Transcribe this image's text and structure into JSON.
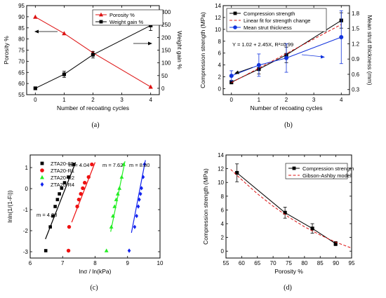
{
  "chart_data": [
    {
      "type": "line",
      "panel_label": "(a)",
      "xlabel": "Number of recoating cycles",
      "ylabel": "Porosity %",
      "ylabel_right": "Weight gain %",
      "xlim": [
        -0.3,
        4.3
      ],
      "ylim": [
        55,
        95
      ],
      "ylim_right": [
        -25,
        325
      ],
      "xticks": [
        "0",
        "1",
        "2",
        "3",
        "4"
      ],
      "yticks": [
        "55",
        "60",
        "65",
        "70",
        "75",
        "80",
        "85",
        "90",
        "95"
      ],
      "yticks_right": [
        "0",
        "50",
        "100",
        "150",
        "200",
        "250",
        "300"
      ],
      "series": [
        {
          "name": "Porosity %",
          "color": "#dd1111",
          "marker": "triangle",
          "axis": "left",
          "x": [
            0,
            1,
            2,
            4
          ],
          "values": [
            89.9,
            82.5,
            73.8,
            58.5
          ]
        },
        {
          "name": "Weight gain %",
          "color": "#000000",
          "marker": "square",
          "axis": "right",
          "x": [
            0,
            1,
            2,
            4
          ],
          "values": [
            0,
            55,
            132,
            247
          ],
          "err": [
            0,
            12,
            13,
            20
          ]
        }
      ]
    },
    {
      "type": "line",
      "panel_label": "(b)",
      "xlabel": "Number of recoating cycles",
      "ylabel": "Compression strength (MPa)",
      "ylabel_right": "Mean strut thickness (mm)",
      "xlim": [
        -0.3,
        4.3
      ],
      "ylim": [
        -1,
        14
      ],
      "ylim_right": [
        0.2,
        1.95
      ],
      "xticks": [
        "0",
        "1",
        "2",
        "3",
        "4"
      ],
      "yticks": [
        "0",
        "2",
        "4",
        "6",
        "8",
        "10",
        "12",
        "14"
      ],
      "yticks_right": [
        "0.3",
        "0.6",
        "0.9",
        "1.2",
        "1.5",
        "1.8"
      ],
      "annotation": "Y = 1.02 + 2.45X, R²=0.99",
      "series": [
        {
          "name": "Compression strength",
          "color": "#000000",
          "marker": "square",
          "axis": "left",
          "x": [
            0,
            1,
            2,
            4
          ],
          "values": [
            1.1,
            3.3,
            5.7,
            11.5
          ],
          "err": [
            0.3,
            0.8,
            1.3,
            1.3
          ]
        },
        {
          "name": "Linear fit for strength change",
          "color": "#dd1111",
          "marker": "none",
          "dashed": true,
          "axis": "left",
          "x": [
            0,
            4
          ],
          "values": [
            1.02,
            10.82
          ]
        },
        {
          "name": "Mean strut thickness",
          "color": "#1133dd",
          "marker": "circle",
          "axis": "right",
          "x": [
            0,
            1,
            2,
            4
          ],
          "values": [
            0.57,
            0.78,
            0.92,
            1.33
          ],
          "err": [
            0.1,
            0.22,
            0.28,
            0.52
          ]
        }
      ]
    },
    {
      "type": "scatter",
      "panel_label": "(c)",
      "xlabel": "lnσ / ln(kPa)",
      "ylabel": "lnln(1/(1-Fi))",
      "xlim": [
        6,
        10
      ],
      "ylim": [
        -3.3,
        1.6
      ],
      "xticks": [
        "6",
        "7",
        "8",
        "9",
        "10"
      ],
      "yticks": [
        "-3",
        "-2",
        "-1",
        "0",
        "1"
      ],
      "series": [
        {
          "name": "ZTA20-80",
          "color": "#000000",
          "marker": "square",
          "m_label": "m = 4.23",
          "x": [
            6.48,
            6.62,
            6.7,
            6.77,
            6.84,
            6.9,
            6.97,
            7.06,
            7.18,
            7.34
          ],
          "values": [
            -2.95,
            -1.82,
            -1.3,
            -0.85,
            -0.52,
            -0.25,
            0.02,
            0.28,
            0.55,
            1.15
          ],
          "fit_x": [
            6.47,
            7.4
          ],
          "fit_y": [
            -2.4,
            1.25
          ]
        },
        {
          "name": "ZTA20-R1",
          "color": "#ee1111",
          "marker": "circle",
          "m_label": "m = 4.04",
          "x": [
            7.18,
            7.2,
            7.45,
            7.5,
            7.56,
            7.62,
            7.68,
            7.8,
            7.9
          ],
          "values": [
            -2.95,
            -1.82,
            -0.85,
            -0.52,
            -0.25,
            0.02,
            0.28,
            0.55,
            1.15
          ],
          "fit_x": [
            7.28,
            8.0
          ],
          "fit_y": [
            -1.6,
            1.25
          ]
        },
        {
          "name": "ZTA20-R2",
          "color": "#22ee22",
          "marker": "triangle",
          "m_label": "m = 7.62",
          "x": [
            8.35,
            8.5,
            8.55,
            8.6,
            8.65,
            8.7,
            8.75,
            8.82,
            8.88
          ],
          "values": [
            -2.95,
            -1.82,
            -1.3,
            -0.85,
            -0.52,
            -0.25,
            0.02,
            0.55,
            1.15
          ],
          "fit_x": [
            8.48,
            8.92
          ],
          "fit_y": [
            -2.05,
            1.3
          ]
        },
        {
          "name": "ZTA20-R4",
          "color": "#1122ee",
          "marker": "diamond",
          "m_label": "m = 8.80",
          "x": [
            9.05,
            9.22,
            9.28,
            9.33,
            9.36,
            9.4,
            9.43,
            9.48,
            9.52
          ],
          "values": [
            -2.95,
            -1.82,
            -1.3,
            -0.85,
            -0.52,
            -0.25,
            0.02,
            0.55,
            1.15
          ],
          "fit_x": [
            9.12,
            9.55
          ],
          "fit_y": [
            -2.1,
            1.35
          ]
        }
      ]
    },
    {
      "type": "line",
      "panel_label": "(d)",
      "xlabel": "Porosity %",
      "ylabel": "Compression strength (MPa)",
      "xlim": [
        55,
        95
      ],
      "ylim": [
        -1,
        14
      ],
      "xticks": [
        "55",
        "60",
        "65",
        "70",
        "75",
        "80",
        "85",
        "90",
        "95"
      ],
      "yticks": [
        "0",
        "2",
        "4",
        "6",
        "8",
        "10",
        "12",
        "14"
      ],
      "series": [
        {
          "name": "Compression strength",
          "color": "#000000",
          "marker": "square",
          "x": [
            58.5,
            73.8,
            82.5,
            89.9
          ],
          "values": [
            11.4,
            5.6,
            3.3,
            1.1
          ],
          "err": [
            1.3,
            0.8,
            0.7,
            0.3
          ]
        },
        {
          "name": "Gibson-Ashby model",
          "color": "#dd1111",
          "marker": "none",
          "dashed": true,
          "x": [
            56.5,
            60,
            65,
            70,
            75,
            80,
            85,
            90,
            95
          ],
          "values": [
            11.9,
            10.4,
            8.35,
            6.55,
            4.95,
            3.55,
            2.35,
            1.3,
            0.45
          ]
        }
      ]
    }
  ]
}
